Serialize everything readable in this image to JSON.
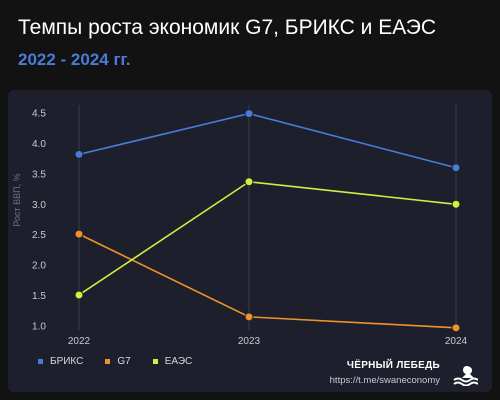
{
  "header": {
    "title": "Темпы роста экономик G7, БРИКС и ЕАЭС",
    "subtitle": "2022 - 2024 гг."
  },
  "chart_data": {
    "type": "line",
    "x": [
      "2022",
      "2023",
      "2024"
    ],
    "ylabel": "Рост ВВП, %",
    "ylim": [
      1.0,
      4.5
    ],
    "yticks": [
      "1.0",
      "1.5",
      "2.0",
      "2.5",
      "3.0",
      "3.5",
      "4.0",
      "4.5"
    ],
    "grid": "vertical",
    "legend_position": "bottom-left",
    "series": [
      {
        "name": "БРИКС",
        "color": "#4b7bd8",
        "values": [
          3.82,
          4.49,
          3.6
        ]
      },
      {
        "name": "G7",
        "color": "#f0922b",
        "values": [
          2.51,
          1.15,
          0.97
        ]
      },
      {
        "name": "ЕАЭС",
        "color": "#cff23f",
        "values": [
          1.51,
          3.37,
          3.0
        ]
      }
    ]
  },
  "brand": {
    "name": "ЧЁРНЫЙ ЛЕБЕДЬ",
    "link": "https://t.me/swaneconomy",
    "logo_icon": "swan-logo-icon"
  }
}
